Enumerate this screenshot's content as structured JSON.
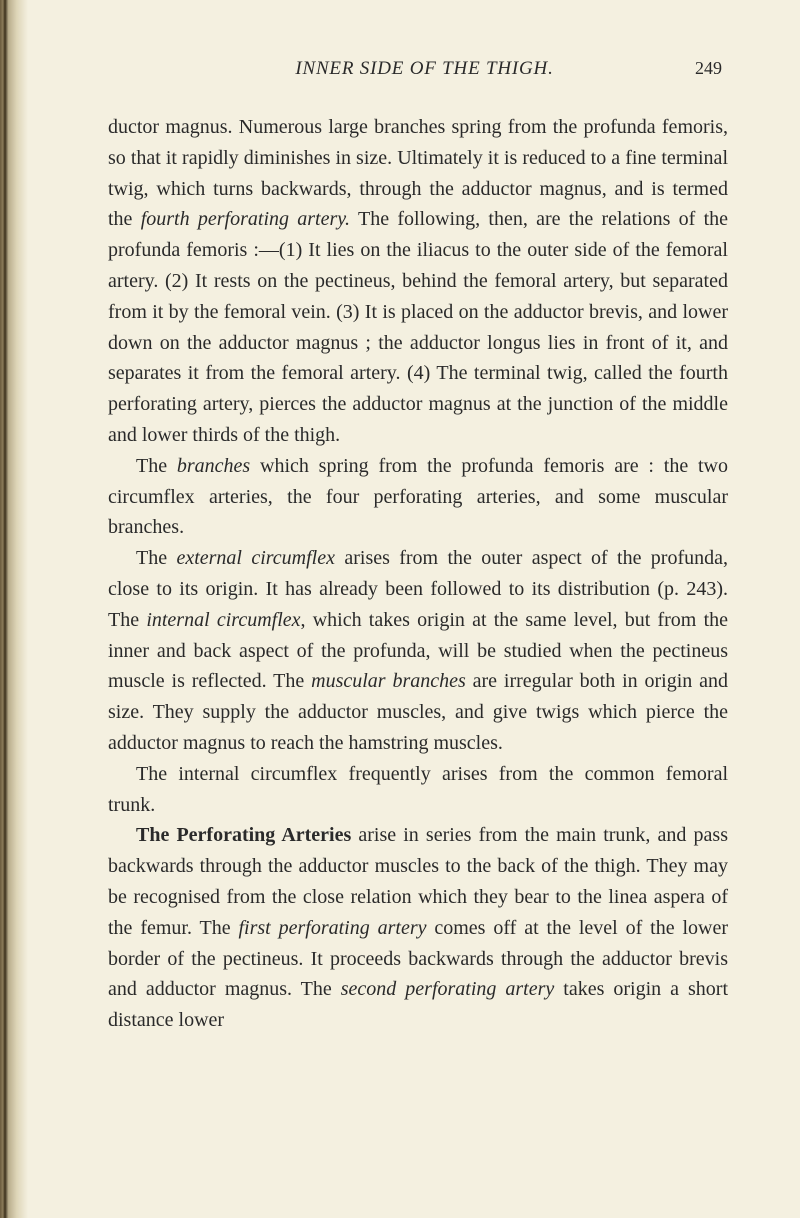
{
  "header": {
    "running_title": "INNER SIDE OF THE THIGH.",
    "page_number": "249"
  },
  "paragraphs": {
    "p1_a": "ductor magnus. Numerous large branches spring from the profunda femoris, so that it rapidly diminishes in size. Ultimately it is reduced to a fine terminal twig, which turns backwards, through the adductor magnus, and is termed the ",
    "p1_italic1": "fourth perforating artery.",
    "p1_b": " The following, then, are the relations of the profunda femoris :—(1) It lies on the iliacus to the outer side of the femoral artery. (2) It rests on the pectineus, behind the femoral artery, but separated from it by the femoral vein. (3) It is placed on the adductor brevis, and lower down on the adductor magnus ; the adductor longus lies in front of it, and separates it from the femoral artery. (4) The terminal twig, called the fourth perforating artery, pierces the adductor magnus at the junction of the middle and lower thirds of the thigh.",
    "p2_a": "The ",
    "p2_italic1": "branches",
    "p2_b": " which spring from the profunda femoris are : the two circumflex arteries, the four perforating arteries, and some muscular branches.",
    "p3_a": "The ",
    "p3_italic1": "external circumflex",
    "p3_b": " arises from the outer aspect of the profunda, close to its origin. It has already been followed to its distribution (p. 243). The ",
    "p3_italic2": "internal circumflex",
    "p3_c": ", which takes origin at the same level, but from the inner and back aspect of the profunda, will be studied when the pectineus muscle is reflected. The ",
    "p3_italic3": "muscular branches",
    "p3_d": " are irregular both in origin and size. They supply the adductor muscles, and give twigs which pierce the adductor magnus to reach the hamstring muscles.",
    "p4": "The internal circumflex frequently arises from the common femoral trunk.",
    "p5_bold": "The Perforating Arteries",
    "p5_a": " arise in series from the main trunk, and pass backwards through the adductor muscles to the back of the thigh. They may be recognised from the close relation which they bear to the linea aspera of the femur. The ",
    "p5_italic1": "first perforating artery",
    "p5_b": " comes off at the level of the lower border of the pectineus. It proceeds backwards through the adductor brevis and adductor magnus. The ",
    "p5_italic2": "second perforating artery",
    "p5_c": " takes origin a short distance lower"
  }
}
